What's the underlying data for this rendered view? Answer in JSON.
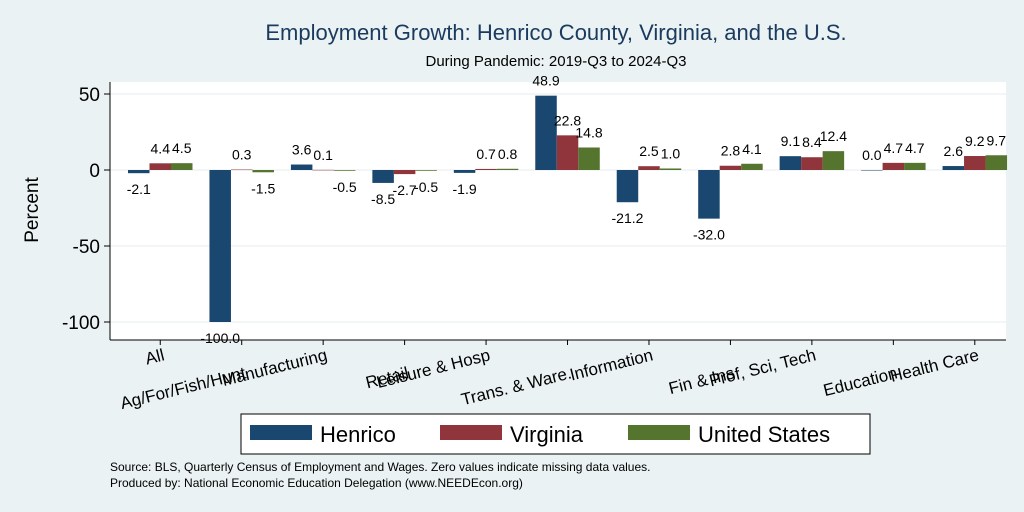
{
  "chart_data": {
    "type": "bar",
    "title": "Employment Growth: Henrico County, Virginia, and the U.S.",
    "subtitle": "During Pandemic: 2019-Q3 to 2024-Q3",
    "ylabel": "Percent",
    "xlabel": "",
    "ylim": [
      -110,
      60
    ],
    "yticks": [
      50,
      0,
      -50,
      -100
    ],
    "grid": true,
    "legend_position": "bottom",
    "categories": [
      "All",
      "Ag/For/Fish/Hunt",
      "Manufacturing",
      "Retail",
      "Leisure & Hosp",
      "Trans. & Ware.",
      "Information",
      "Fin & Ins",
      "Prof, Sci, Tech",
      "Education",
      "Health Care"
    ],
    "series": [
      {
        "name": "Henrico",
        "color": "#1a476f",
        "values": [
          -2.1,
          -100.0,
          3.6,
          -8.5,
          -1.9,
          48.9,
          -21.2,
          -32.0,
          9.1,
          0.0,
          2.6
        ],
        "labels": [
          "-2.1",
          "-100.0",
          "3.6",
          "-8.5",
          "-1.9",
          "48.9",
          "-21.2",
          "-32.0",
          "9.1",
          "0.0",
          "2.6"
        ]
      },
      {
        "name": "Virginia",
        "color": "#90353b",
        "values": [
          4.4,
          0.3,
          0.1,
          -2.7,
          0.7,
          22.8,
          2.5,
          2.8,
          8.4,
          4.7,
          9.2
        ],
        "labels": [
          "4.4",
          "0.3",
          "0.1",
          "-2.7",
          "0.7",
          "22.8",
          "2.5",
          "2.8",
          "8.4",
          "4.7",
          "9.2"
        ]
      },
      {
        "name": "United States",
        "color": "#55752f",
        "values": [
          4.5,
          -1.5,
          -0.5,
          -0.5,
          0.8,
          14.8,
          1.0,
          4.1,
          12.4,
          4.7,
          9.7
        ],
        "labels": [
          "4.5",
          "-1.5",
          "-0.5",
          "-0.5",
          "0.8",
          "14.8",
          "1.0",
          "4.1",
          "12.4",
          "4.7",
          "9.7"
        ]
      }
    ]
  },
  "notes": {
    "source": "Source: BLS, Quarterly Census of Employment and Wages. Zero values indicate missing data values.",
    "produced_by": "Produced by: National Economic Education Delegation (www.NEEDEcon.org)"
  }
}
